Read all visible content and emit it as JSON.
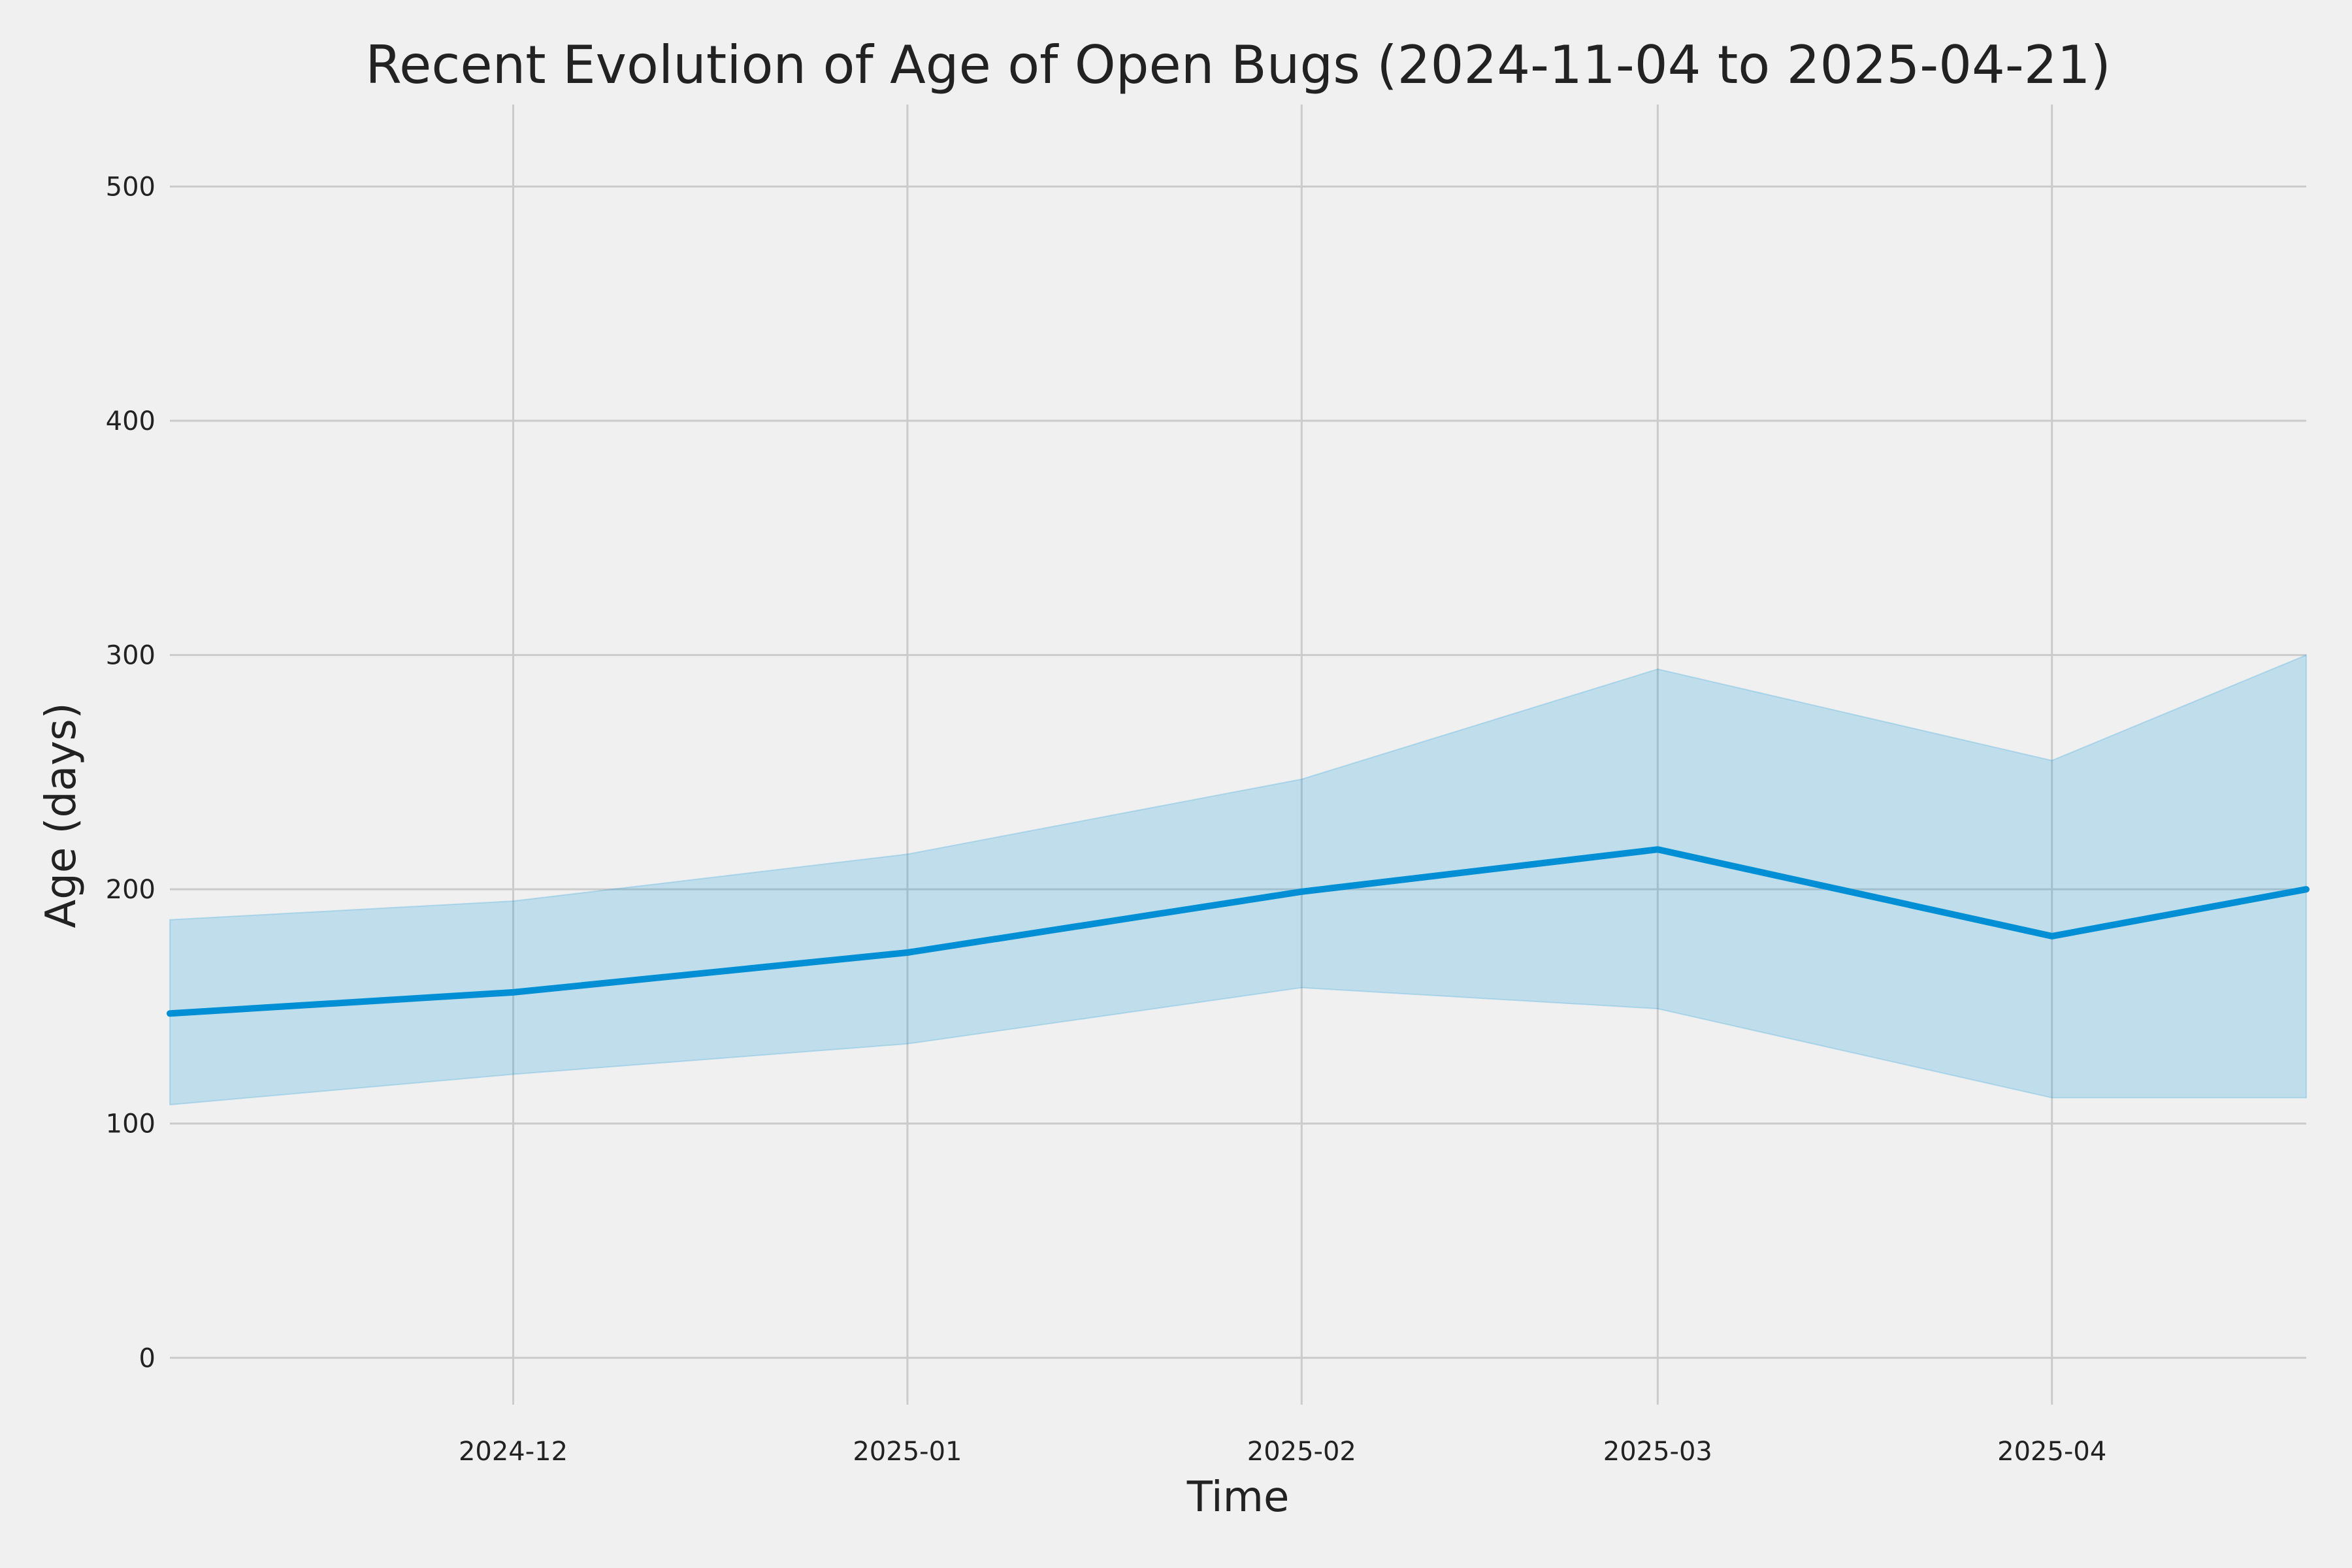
{
  "chart_data": {
    "type": "line",
    "title": "Recent Evolution of Age of Open Bugs (2024-11-04 to 2025-04-21)",
    "xlabel": "Time",
    "ylabel": "Age (days)",
    "xlim": [
      "2024-11-04",
      "2025-04-21"
    ],
    "ylim": [
      -20,
      535
    ],
    "x_ticks": [
      "2024-12",
      "2025-01",
      "2025-02",
      "2025-03",
      "2025-04"
    ],
    "x_tick_dates": [
      "2024-12-01",
      "2025-01-01",
      "2025-02-01",
      "2025-03-01",
      "2025-04-01"
    ],
    "y_ticks": [
      0,
      100,
      200,
      300,
      400,
      500
    ],
    "grid": true,
    "legend": "none",
    "colors": {
      "line": "#008fd5",
      "band": "#008fd5",
      "background": "#f0f0f0",
      "grid": "#cbcbcb"
    },
    "x": [
      "2024-11-04",
      "2024-12-01",
      "2025-01-01",
      "2025-02-01",
      "2025-03-01",
      "2025-04-01",
      "2025-04-21"
    ],
    "series": [
      {
        "values": [
          147,
          156,
          173,
          199,
          217,
          180,
          200
        ]
      }
    ],
    "band": {
      "upper": [
        187,
        195,
        215,
        247,
        294,
        255,
        300
      ],
      "lower": [
        108,
        121,
        134,
        158,
        149,
        111,
        111
      ]
    }
  }
}
